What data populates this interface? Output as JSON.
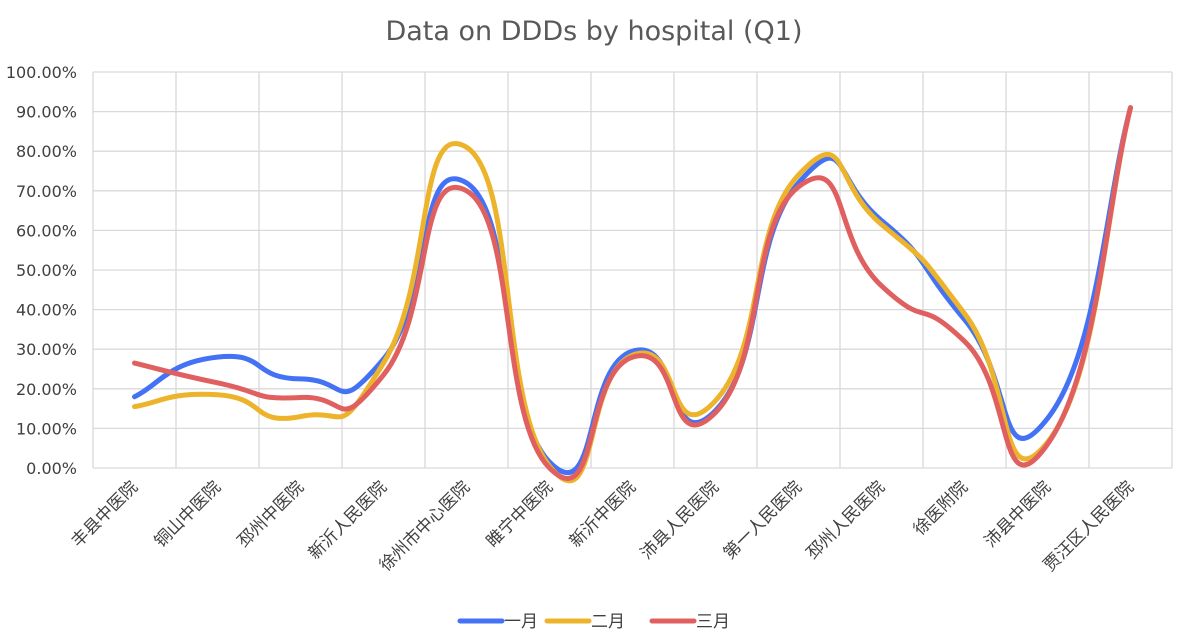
{
  "chart_data": {
    "type": "line",
    "title": "Data on DDDs by hospital (Q1)",
    "xlabel": "",
    "ylabel": "",
    "ylim": [
      0,
      1
    ],
    "yticks": [
      "0.00%",
      "10.00%",
      "20.00%",
      "30.00%",
      "40.00%",
      "50.00%",
      "60.00%",
      "70.00%",
      "80.00%",
      "90.00%",
      "100.00%"
    ],
    "grid": true,
    "smooth": true,
    "legend_position": "bottom",
    "categories": [
      "丰县中医院",
      "铜山中医院",
      "邳州中医院",
      "新沂人民医院",
      "徐州市中心医院",
      "睢宁中医院",
      "新沂中医院",
      "沛县人民医院",
      "第一人民医院",
      "邳州人民医院",
      "徐医附院",
      "沛县中医院",
      "贾汪区人民医院"
    ],
    "series": [
      {
        "name": "一月",
        "color": "#4472f5",
        "values": [
          0.18,
          0.28,
          0.225,
          0.275,
          0.72,
          0.015,
          0.295,
          0.145,
          0.72,
          0.625,
          0.375,
          0.125,
          0.91
        ]
      },
      {
        "name": "二月",
        "color": "#edb32b",
        "values": [
          0.155,
          0.185,
          0.13,
          0.265,
          0.81,
          0.005,
          0.285,
          0.17,
          0.74,
          0.615,
          0.39,
          0.065,
          0.91
        ]
      },
      {
        "name": "三月",
        "color": "#e06060",
        "values": [
          0.265,
          0.215,
          0.178,
          0.235,
          0.7,
          0.0,
          0.28,
          0.14,
          0.71,
          0.46,
          0.32,
          0.06,
          0.91
        ]
      }
    ]
  }
}
